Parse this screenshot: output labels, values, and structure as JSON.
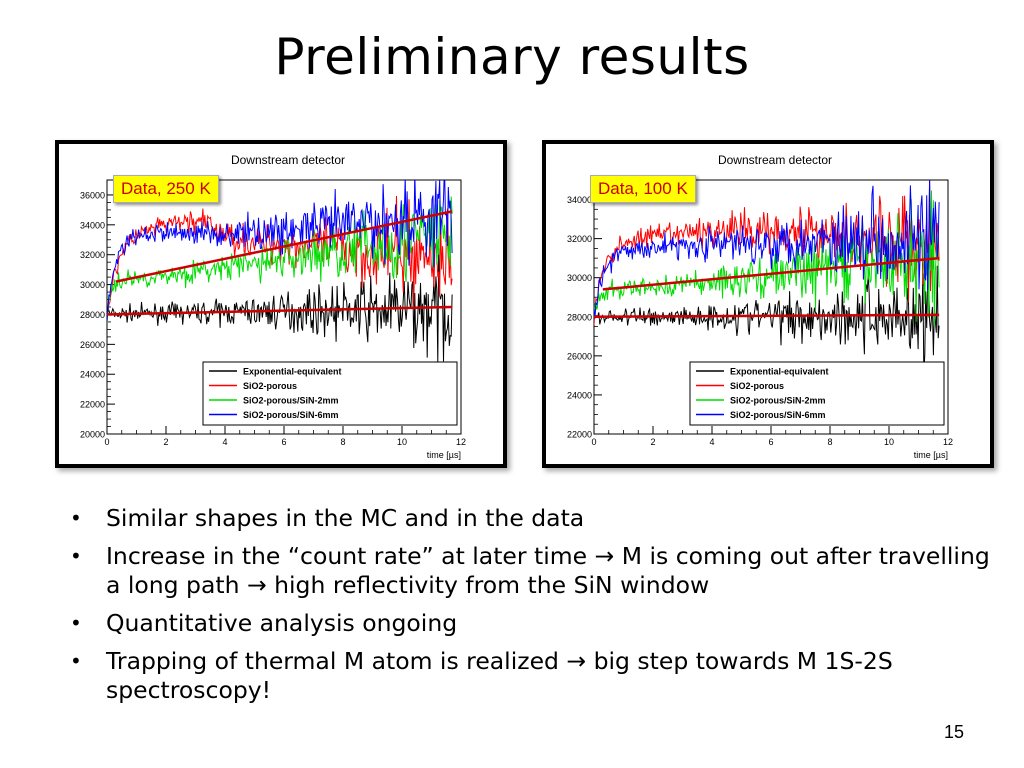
{
  "slide": {
    "title": "Preliminary results",
    "page_number": "15",
    "bullets": [
      "Similar shapes in the MC and in the data",
      "Increase in the “count rate” at later time → M is coming out after travelling a long path → high reflectivity from the SiN window",
      "Quantitative analysis ongoing",
      "Trapping of thermal M atom is realized → big step towards M 1S-2S spectroscopy!"
    ]
  },
  "chart_data": [
    {
      "type": "line",
      "title": "Downstream detector",
      "tag": "Data, 250 K",
      "xlabel": "time [µs]",
      "ylabel": "",
      "xlim": [
        0,
        12
      ],
      "ylim": [
        20000,
        37000
      ],
      "xticks": [
        0,
        2,
        4,
        6,
        8,
        10,
        12
      ],
      "yticks": [
        20000,
        22000,
        24000,
        26000,
        28000,
        30000,
        32000,
        34000,
        36000
      ],
      "legend_position": "bottom-right",
      "colors": {
        "Exponential-equivalent": "#000000",
        "SiO2-porous": "#ff0000",
        "SiO2-porous/SiN-2mm": "#00dd00",
        "SiO2-porous/SiN-6mm": "#0000ff",
        "fit": "#cc0000"
      },
      "series": [
        {
          "name": "Exponential-equivalent",
          "x": [
            0,
            2,
            4,
            6,
            8,
            10,
            11.7
          ],
          "values": [
            28000,
            28100,
            28150,
            28200,
            28250,
            28300,
            28300
          ]
        },
        {
          "name": "SiO2-porous",
          "x": [
            0,
            0.2,
            0.5,
            1,
            2,
            3,
            3.5,
            4,
            5,
            6,
            7,
            8,
            9,
            10,
            11,
            11.7
          ],
          "values": [
            28000,
            30200,
            32300,
            33300,
            34000,
            34300,
            34000,
            33300,
            32800,
            32700,
            32600,
            32400,
            32200,
            32100,
            31900,
            31800
          ]
        },
        {
          "name": "SiO2-porous/SiN-2mm",
          "x": [
            0,
            0.2,
            0.5,
            1,
            2,
            4,
            6,
            8,
            10,
            11.7
          ],
          "values": [
            28000,
            29900,
            30300,
            30400,
            30600,
            31100,
            31700,
            32300,
            32900,
            33300
          ]
        },
        {
          "name": "SiO2-porous/SiN-6mm",
          "x": [
            0,
            0.2,
            0.5,
            1,
            2,
            4,
            5,
            6,
            8,
            10,
            11.7
          ],
          "values": [
            28000,
            30800,
            32500,
            33200,
            33500,
            33400,
            33500,
            33600,
            34000,
            34400,
            34800
          ]
        }
      ],
      "fit_lines": [
        {
          "x": [
            0.3,
            11.7
          ],
          "values": [
            30200,
            34900
          ]
        },
        {
          "x": [
            0,
            11.7
          ],
          "values": [
            28000,
            28500
          ]
        }
      ]
    },
    {
      "type": "line",
      "title": "Downstream detector",
      "tag": "Data, 100 K",
      "xlabel": "time [µs]",
      "ylabel": "",
      "xlim": [
        0,
        12
      ],
      "ylim": [
        22000,
        35000
      ],
      "xticks": [
        0,
        2,
        4,
        6,
        8,
        10,
        12
      ],
      "yticks": [
        22000,
        24000,
        26000,
        28000,
        30000,
        32000,
        34000
      ],
      "legend_position": "bottom-right",
      "colors": {
        "Exponential-equivalent": "#000000",
        "SiO2-porous": "#ff0000",
        "SiO2-porous/SiN-2mm": "#00dd00",
        "SiO2-porous/SiN-6mm": "#0000ff",
        "fit": "#cc0000"
      },
      "series": [
        {
          "name": "Exponential-equivalent",
          "x": [
            0,
            2,
            4,
            6,
            8,
            10,
            11.7
          ],
          "values": [
            28000,
            28000,
            28000,
            28050,
            28050,
            28050,
            28000
          ]
        },
        {
          "name": "SiO2-porous",
          "x": [
            0,
            0.2,
            0.5,
            1,
            2,
            4,
            6,
            8,
            10,
            11.7
          ],
          "values": [
            28000,
            29800,
            31000,
            31800,
            32100,
            32400,
            32500,
            32300,
            31800,
            31600
          ]
        },
        {
          "name": "SiO2-porous/SiN-2mm",
          "x": [
            0,
            0.2,
            0.5,
            1,
            2,
            4,
            6,
            8,
            10,
            11.7
          ],
          "values": [
            28000,
            29000,
            29300,
            29400,
            29500,
            29800,
            30100,
            30500,
            30800,
            31100
          ]
        },
        {
          "name": "SiO2-porous/SiN-6mm",
          "x": [
            0,
            0.2,
            0.5,
            1,
            2,
            4,
            6,
            8,
            10,
            11.7
          ],
          "values": [
            28000,
            29800,
            30800,
            31300,
            31600,
            31700,
            31800,
            32000,
            32100,
            32200
          ]
        }
      ],
      "fit_lines": [
        {
          "x": [
            0.3,
            11.7
          ],
          "values": [
            29400,
            31000
          ]
        },
        {
          "x": [
            0,
            11.7
          ],
          "values": [
            28000,
            28100
          ]
        }
      ]
    }
  ]
}
